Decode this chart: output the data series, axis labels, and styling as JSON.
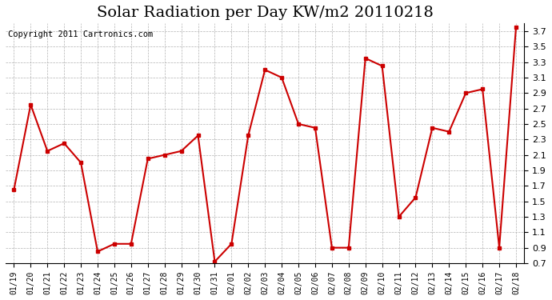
{
  "title": "Solar Radiation per Day KW/m2 20110218",
  "copyright": "Copyright 2011 Cartronics.com",
  "dates": [
    "01/19",
    "01/20",
    "01/21",
    "01/22",
    "01/23",
    "01/24",
    "01/25",
    "01/26",
    "01/27",
    "01/28",
    "01/29",
    "01/30",
    "01/31",
    "02/01",
    "02/02",
    "02/03",
    "02/04",
    "02/05",
    "02/06",
    "02/07",
    "02/08",
    "02/09",
    "02/10",
    "02/11",
    "02/12",
    "02/13",
    "02/14",
    "02/15",
    "02/16",
    "02/17",
    "02/18"
  ],
  "values": [
    1.65,
    2.75,
    2.15,
    2.25,
    2.0,
    0.85,
    0.95,
    0.95,
    2.05,
    2.1,
    2.15,
    2.35,
    0.72,
    0.95,
    2.35,
    3.2,
    3.1,
    2.5,
    2.45,
    0.9,
    0.9,
    3.35,
    3.25,
    1.3,
    1.55,
    2.45,
    2.4,
    2.9,
    2.95,
    0.9,
    3.75
  ],
  "line_color": "#cc0000",
  "marker": "s",
  "marker_size": 3,
  "bg_color": "#ffffff",
  "plot_bg_color": "#ffffff",
  "grid_color": "#aaaaaa",
  "ylim": [
    0.7,
    3.8
  ],
  "yticks": [
    0.7,
    0.9,
    1.1,
    1.3,
    1.5,
    1.7,
    1.9,
    2.1,
    2.3,
    2.5,
    2.7,
    2.9,
    3.1,
    3.3,
    3.5,
    3.7
  ],
  "title_fontsize": 14,
  "copyright_fontsize": 7.5
}
